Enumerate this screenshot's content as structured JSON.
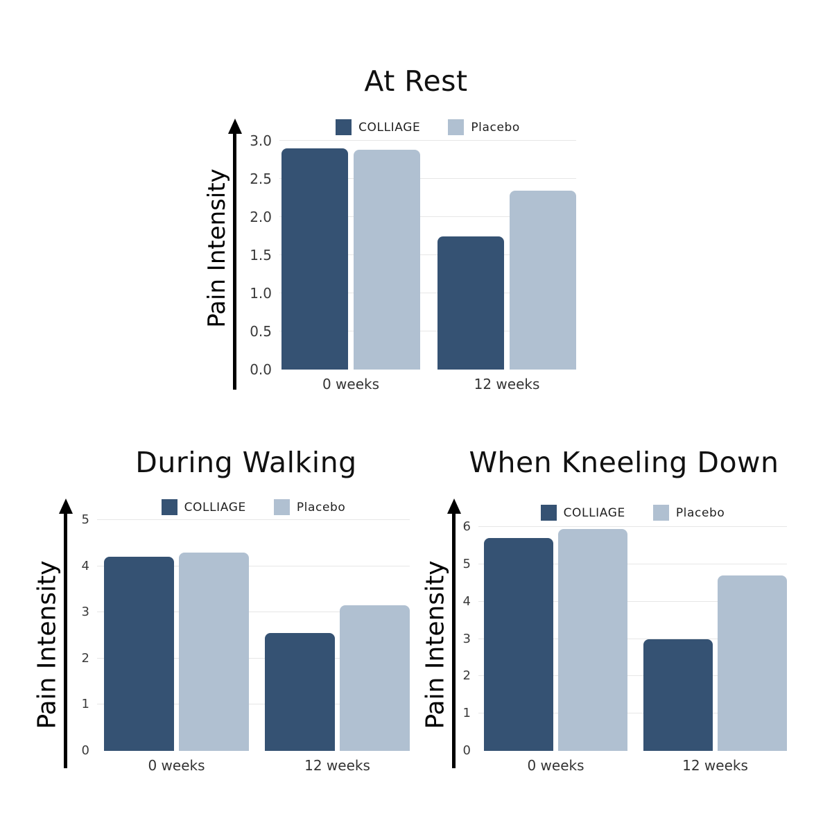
{
  "page": {
    "background": "#ffffff"
  },
  "colors": {
    "colliage": "#355273",
    "placebo": "#B0C0D1",
    "gridline": "#E6E6E6",
    "axis": "#000000",
    "tick_text": "#3A3A3A",
    "title_text": "#111111"
  },
  "chart_data": [
    {
      "type": "bar",
      "title": "At Rest",
      "ylabel": "Pain Intensity",
      "categories": [
        "0 weeks",
        "12 weeks"
      ],
      "series": [
        {
          "name": "COLLIAGE",
          "values": [
            2.9,
            1.75
          ]
        },
        {
          "name": "Placebo",
          "values": [
            2.88,
            2.35
          ]
        }
      ],
      "ylim": [
        0,
        3
      ],
      "yticks": [
        "0.0",
        "0.5",
        "1.0",
        "1.5",
        "2.0",
        "2.5",
        "3.0"
      ],
      "grid": true,
      "legend_position": "top"
    },
    {
      "type": "bar",
      "title": "During Walking",
      "ylabel": "Pain Intensity",
      "categories": [
        "0 weeks",
        "12 weeks"
      ],
      "series": [
        {
          "name": "COLLIAGE",
          "values": [
            4.2,
            2.55
          ]
        },
        {
          "name": "Placebo",
          "values": [
            4.3,
            3.15
          ]
        }
      ],
      "ylim": [
        0,
        5
      ],
      "yticks": [
        "0",
        "1",
        "2",
        "3",
        "4",
        "5"
      ],
      "grid": true,
      "legend_position": "top"
    },
    {
      "type": "bar",
      "title": "When Kneeling Down",
      "ylabel": "Pain Intensity",
      "categories": [
        "0 weeks",
        "12 weeks"
      ],
      "series": [
        {
          "name": "COLLIAGE",
          "values": [
            5.7,
            3.0
          ]
        },
        {
          "name": "Placebo",
          "values": [
            5.95,
            4.7
          ]
        }
      ],
      "ylim": [
        0,
        6
      ],
      "yticks": [
        "0",
        "1",
        "2",
        "3",
        "4",
        "5",
        "6"
      ],
      "grid": true,
      "legend_position": "top"
    }
  ]
}
